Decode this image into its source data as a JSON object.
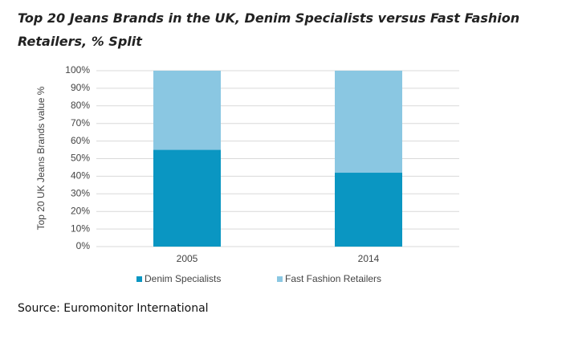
{
  "chart_data": {
    "type": "stacked-bar",
    "title": "Top 20 Jeans Brands in the UK, Denim Specialists versus Fast Fashion Retailers, % Split",
    "y_label": "Top 20 UK Jeans Brands value %",
    "categories": [
      "2005",
      "2014"
    ],
    "series": [
      {
        "name": "Denim Specialists",
        "color": "#0a96c2",
        "values": [
          55,
          42
        ]
      },
      {
        "name": "Fast Fashion Retailers",
        "color": "#8ac7e2",
        "values": [
          45,
          58
        ]
      }
    ],
    "ylim": [
      0,
      100
    ],
    "yticks": [
      {
        "value": 0,
        "label": "0%"
      },
      {
        "value": 10,
        "label": "10%"
      },
      {
        "value": 20,
        "label": "20%"
      },
      {
        "value": 30,
        "label": "30%"
      },
      {
        "value": 40,
        "label": "40%"
      },
      {
        "value": 50,
        "label": "50%"
      },
      {
        "value": 60,
        "label": "60%"
      },
      {
        "value": 70,
        "label": "70%"
      },
      {
        "value": 80,
        "label": "80%"
      },
      {
        "value": 90,
        "label": "90%"
      },
      {
        "value": 100,
        "label": "100%"
      }
    ],
    "grid": true,
    "legend": "bottom",
    "source": "Source: Euromonitor International"
  }
}
